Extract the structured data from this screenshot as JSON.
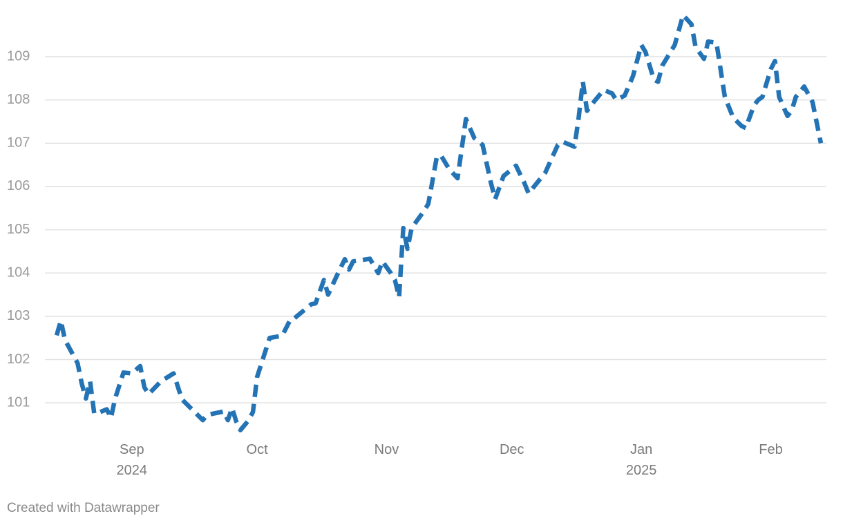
{
  "chart_data": {
    "type": "line",
    "x": [
      "2024-08-14",
      "2024-08-15",
      "2024-08-16",
      "2024-08-19",
      "2024-08-20",
      "2024-08-21",
      "2024-08-22",
      "2024-08-23",
      "2024-08-24",
      "2024-08-26",
      "2024-08-27",
      "2024-08-28",
      "2024-08-29",
      "2024-08-30",
      "2024-09-01",
      "2024-09-03",
      "2024-09-04",
      "2024-09-05",
      "2024-09-08",
      "2024-09-11",
      "2024-09-13",
      "2024-09-18",
      "2024-09-19",
      "2024-09-23",
      "2024-09-24",
      "2024-09-25",
      "2024-09-26",
      "2024-09-27",
      "2024-09-29",
      "2024-09-30",
      "2024-10-01",
      "2024-10-04",
      "2024-10-07",
      "2024-10-09",
      "2024-10-10",
      "2024-10-14",
      "2024-10-15",
      "2024-10-17",
      "2024-10-18",
      "2024-10-20",
      "2024-10-22",
      "2024-10-23",
      "2024-10-24",
      "2024-10-28",
      "2024-10-30",
      "2024-10-31",
      "2024-11-02",
      "2024-11-03",
      "2024-11-04",
      "2024-11-05",
      "2024-11-06",
      "2024-11-07",
      "2024-11-10",
      "2024-11-11",
      "2024-11-13",
      "2024-11-14",
      "2024-11-16",
      "2024-11-18",
      "2024-11-20",
      "2024-11-22",
      "2024-11-24",
      "2024-11-26",
      "2024-11-27",
      "2024-11-29",
      "2024-12-02",
      "2024-12-04",
      "2024-12-05",
      "2024-12-07",
      "2024-12-09",
      "2024-12-12",
      "2024-12-13",
      "2024-12-16",
      "2024-12-17",
      "2024-12-18",
      "2024-12-19",
      "2024-12-21",
      "2024-12-23",
      "2024-12-25",
      "2024-12-26",
      "2024-12-28",
      "2024-12-30",
      "2025-01-01",
      "2025-01-02",
      "2025-01-04",
      "2025-01-05",
      "2025-01-06",
      "2025-01-08",
      "2025-01-09",
      "2025-01-11",
      "2025-01-13",
      "2025-01-14",
      "2025-01-16",
      "2025-01-17",
      "2025-01-19",
      "2025-01-21",
      "2025-01-23",
      "2025-01-25",
      "2025-01-26",
      "2025-01-28",
      "2025-01-29",
      "2025-01-30",
      "2025-02-01",
      "2025-02-02",
      "2025-02-03",
      "2025-02-05",
      "2025-02-06",
      "2025-02-07",
      "2025-02-09",
      "2025-02-11",
      "2025-02-13"
    ],
    "values": [
      102.56,
      102.9,
      102.45,
      101.92,
      101.45,
      101.1,
      101.5,
      100.75,
      100.77,
      100.85,
      100.65,
      101.1,
      101.4,
      101.7,
      101.68,
      101.85,
      101.36,
      101.2,
      101.5,
      101.68,
      101.08,
      100.6,
      100.72,
      100.8,
      100.6,
      100.88,
      100.57,
      100.37,
      100.6,
      100.79,
      101.6,
      102.5,
      102.55,
      102.93,
      102.96,
      103.28,
      103.3,
      103.84,
      103.5,
      103.92,
      104.32,
      104.08,
      104.27,
      104.33,
      104.0,
      104.27,
      104.0,
      103.84,
      103.44,
      105.04,
      104.56,
      105.04,
      105.44,
      105.6,
      106.67,
      106.72,
      106.4,
      106.19,
      107.56,
      107.12,
      106.96,
      106.08,
      105.71,
      106.24,
      106.48,
      106.08,
      105.84,
      106.08,
      106.32,
      106.96,
      107.04,
      106.92,
      107.59,
      108.42,
      107.75,
      108.0,
      108.23,
      108.15,
      108.0,
      108.1,
      108.55,
      109.27,
      109.11,
      108.47,
      108.42,
      108.79,
      109.11,
      109.27,
      109.96,
      109.75,
      109.22,
      108.95,
      109.35,
      109.32,
      108.07,
      107.59,
      107.4,
      107.35,
      107.88,
      108.0,
      108.07,
      108.71,
      108.9,
      108.07,
      107.63,
      107.75,
      108.07,
      108.31,
      107.95,
      107.0
    ],
    "color": "#2474b5",
    "xlim": [
      "2024-08-14",
      "2025-02-13"
    ],
    "xticks": [
      {
        "value": "2024-09-01",
        "label": "Sep\n2024"
      },
      {
        "value": "2024-10-01",
        "label": "Oct"
      },
      {
        "value": "2024-11-01",
        "label": "Nov"
      },
      {
        "value": "2024-12-01",
        "label": "Dec"
      },
      {
        "value": "2025-01-01",
        "label": "Jan\n2025"
      },
      {
        "value": "2025-02-01",
        "label": "Feb"
      }
    ],
    "ylim": [
      100.3,
      110
    ],
    "yticks": [
      101,
      102,
      103,
      104,
      105,
      106,
      107,
      108,
      109
    ],
    "grid": true,
    "footer": "Created with Datawrapper"
  }
}
